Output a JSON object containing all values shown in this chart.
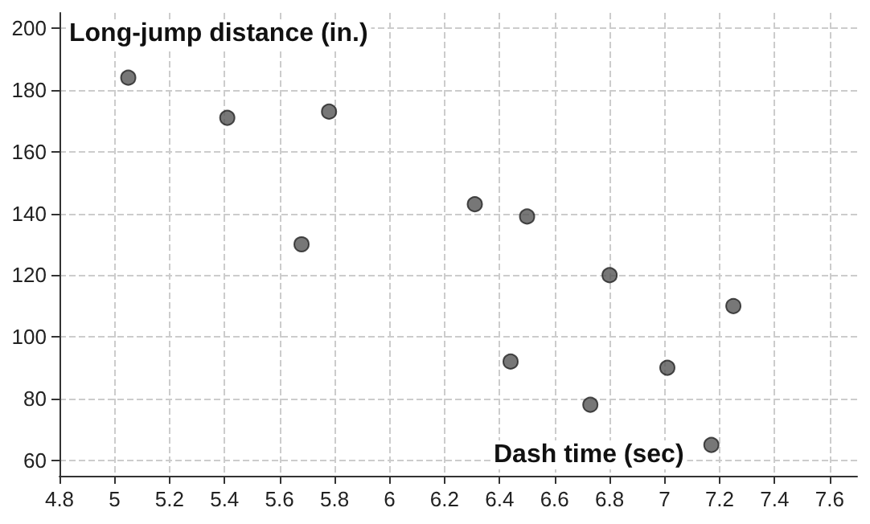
{
  "chart_data": {
    "type": "scatter",
    "xlabel": "Dash time (sec)",
    "ylabel": "Long-jump distance (in.)",
    "x": [
      5.05,
      5.41,
      5.68,
      5.78,
      6.31,
      6.44,
      6.5,
      6.73,
      6.8,
      7.01,
      7.17,
      7.25
    ],
    "values": [
      184,
      171,
      130,
      173,
      143,
      92,
      139,
      78,
      120,
      90,
      65,
      110
    ],
    "color": "#555555",
    "marker": "circle",
    "grid": true,
    "xlim": [
      4.8,
      7.7
    ],
    "xticks": [
      4.8,
      5,
      5.2,
      5.4,
      5.6,
      5.8,
      6,
      6.2,
      6.4,
      6.6,
      6.8,
      7,
      7.2,
      7.4,
      7.6
    ],
    "ylim": [
      55,
      205
    ],
    "yticks": [
      60,
      80,
      100,
      120,
      140,
      160,
      180,
      200
    ]
  }
}
